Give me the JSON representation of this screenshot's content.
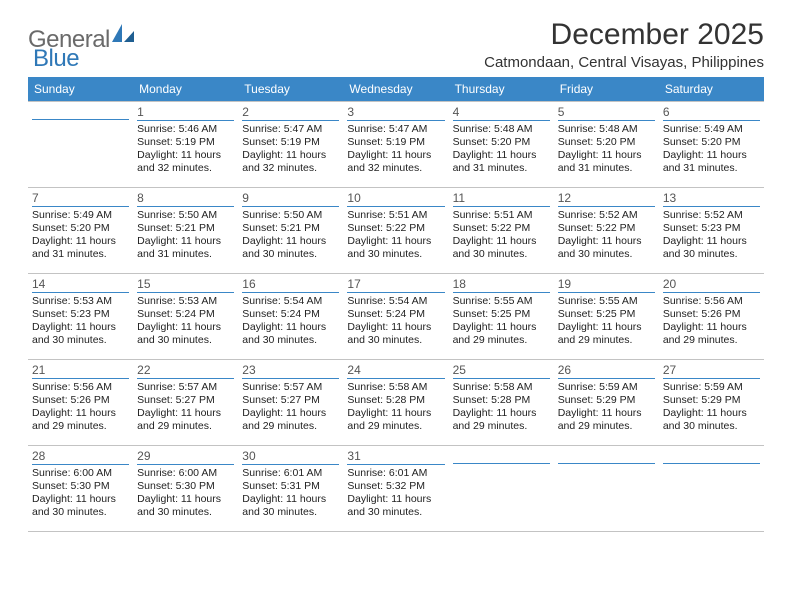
{
  "logo": {
    "general": "General",
    "blue": "Blue"
  },
  "title": "December 2025",
  "location": "Catmondaan, Central Visayas, Philippines",
  "colors": {
    "header_bg": "#3a87c7",
    "header_fg": "#ffffff",
    "accent": "#3a87c7",
    "grid": "#c3c3c3",
    "text": "#222222",
    "title": "#333333"
  },
  "weekdays": [
    "Sunday",
    "Monday",
    "Tuesday",
    "Wednesday",
    "Thursday",
    "Friday",
    "Saturday"
  ],
  "weeks": [
    [
      null,
      {
        "d": "1",
        "sr": "Sunrise: 5:46 AM",
        "ss": "Sunset: 5:19 PM",
        "dl": "Daylight: 11 hours and 32 minutes."
      },
      {
        "d": "2",
        "sr": "Sunrise: 5:47 AM",
        "ss": "Sunset: 5:19 PM",
        "dl": "Daylight: 11 hours and 32 minutes."
      },
      {
        "d": "3",
        "sr": "Sunrise: 5:47 AM",
        "ss": "Sunset: 5:19 PM",
        "dl": "Daylight: 11 hours and 32 minutes."
      },
      {
        "d": "4",
        "sr": "Sunrise: 5:48 AM",
        "ss": "Sunset: 5:20 PM",
        "dl": "Daylight: 11 hours and 31 minutes."
      },
      {
        "d": "5",
        "sr": "Sunrise: 5:48 AM",
        "ss": "Sunset: 5:20 PM",
        "dl": "Daylight: 11 hours and 31 minutes."
      },
      {
        "d": "6",
        "sr": "Sunrise: 5:49 AM",
        "ss": "Sunset: 5:20 PM",
        "dl": "Daylight: 11 hours and 31 minutes."
      }
    ],
    [
      {
        "d": "7",
        "sr": "Sunrise: 5:49 AM",
        "ss": "Sunset: 5:20 PM",
        "dl": "Daylight: 11 hours and 31 minutes."
      },
      {
        "d": "8",
        "sr": "Sunrise: 5:50 AM",
        "ss": "Sunset: 5:21 PM",
        "dl": "Daylight: 11 hours and 31 minutes."
      },
      {
        "d": "9",
        "sr": "Sunrise: 5:50 AM",
        "ss": "Sunset: 5:21 PM",
        "dl": "Daylight: 11 hours and 30 minutes."
      },
      {
        "d": "10",
        "sr": "Sunrise: 5:51 AM",
        "ss": "Sunset: 5:22 PM",
        "dl": "Daylight: 11 hours and 30 minutes."
      },
      {
        "d": "11",
        "sr": "Sunrise: 5:51 AM",
        "ss": "Sunset: 5:22 PM",
        "dl": "Daylight: 11 hours and 30 minutes."
      },
      {
        "d": "12",
        "sr": "Sunrise: 5:52 AM",
        "ss": "Sunset: 5:22 PM",
        "dl": "Daylight: 11 hours and 30 minutes."
      },
      {
        "d": "13",
        "sr": "Sunrise: 5:52 AM",
        "ss": "Sunset: 5:23 PM",
        "dl": "Daylight: 11 hours and 30 minutes."
      }
    ],
    [
      {
        "d": "14",
        "sr": "Sunrise: 5:53 AM",
        "ss": "Sunset: 5:23 PM",
        "dl": "Daylight: 11 hours and 30 minutes."
      },
      {
        "d": "15",
        "sr": "Sunrise: 5:53 AM",
        "ss": "Sunset: 5:24 PM",
        "dl": "Daylight: 11 hours and 30 minutes."
      },
      {
        "d": "16",
        "sr": "Sunrise: 5:54 AM",
        "ss": "Sunset: 5:24 PM",
        "dl": "Daylight: 11 hours and 30 minutes."
      },
      {
        "d": "17",
        "sr": "Sunrise: 5:54 AM",
        "ss": "Sunset: 5:24 PM",
        "dl": "Daylight: 11 hours and 30 minutes."
      },
      {
        "d": "18",
        "sr": "Sunrise: 5:55 AM",
        "ss": "Sunset: 5:25 PM",
        "dl": "Daylight: 11 hours and 29 minutes."
      },
      {
        "d": "19",
        "sr": "Sunrise: 5:55 AM",
        "ss": "Sunset: 5:25 PM",
        "dl": "Daylight: 11 hours and 29 minutes."
      },
      {
        "d": "20",
        "sr": "Sunrise: 5:56 AM",
        "ss": "Sunset: 5:26 PM",
        "dl": "Daylight: 11 hours and 29 minutes."
      }
    ],
    [
      {
        "d": "21",
        "sr": "Sunrise: 5:56 AM",
        "ss": "Sunset: 5:26 PM",
        "dl": "Daylight: 11 hours and 29 minutes."
      },
      {
        "d": "22",
        "sr": "Sunrise: 5:57 AM",
        "ss": "Sunset: 5:27 PM",
        "dl": "Daylight: 11 hours and 29 minutes."
      },
      {
        "d": "23",
        "sr": "Sunrise: 5:57 AM",
        "ss": "Sunset: 5:27 PM",
        "dl": "Daylight: 11 hours and 29 minutes."
      },
      {
        "d": "24",
        "sr": "Sunrise: 5:58 AM",
        "ss": "Sunset: 5:28 PM",
        "dl": "Daylight: 11 hours and 29 minutes."
      },
      {
        "d": "25",
        "sr": "Sunrise: 5:58 AM",
        "ss": "Sunset: 5:28 PM",
        "dl": "Daylight: 11 hours and 29 minutes."
      },
      {
        "d": "26",
        "sr": "Sunrise: 5:59 AM",
        "ss": "Sunset: 5:29 PM",
        "dl": "Daylight: 11 hours and 29 minutes."
      },
      {
        "d": "27",
        "sr": "Sunrise: 5:59 AM",
        "ss": "Sunset: 5:29 PM",
        "dl": "Daylight: 11 hours and 30 minutes."
      }
    ],
    [
      {
        "d": "28",
        "sr": "Sunrise: 6:00 AM",
        "ss": "Sunset: 5:30 PM",
        "dl": "Daylight: 11 hours and 30 minutes."
      },
      {
        "d": "29",
        "sr": "Sunrise: 6:00 AM",
        "ss": "Sunset: 5:30 PM",
        "dl": "Daylight: 11 hours and 30 minutes."
      },
      {
        "d": "30",
        "sr": "Sunrise: 6:01 AM",
        "ss": "Sunset: 5:31 PM",
        "dl": "Daylight: 11 hours and 30 minutes."
      },
      {
        "d": "31",
        "sr": "Sunrise: 6:01 AM",
        "ss": "Sunset: 5:32 PM",
        "dl": "Daylight: 11 hours and 30 minutes."
      },
      null,
      null,
      null
    ]
  ]
}
